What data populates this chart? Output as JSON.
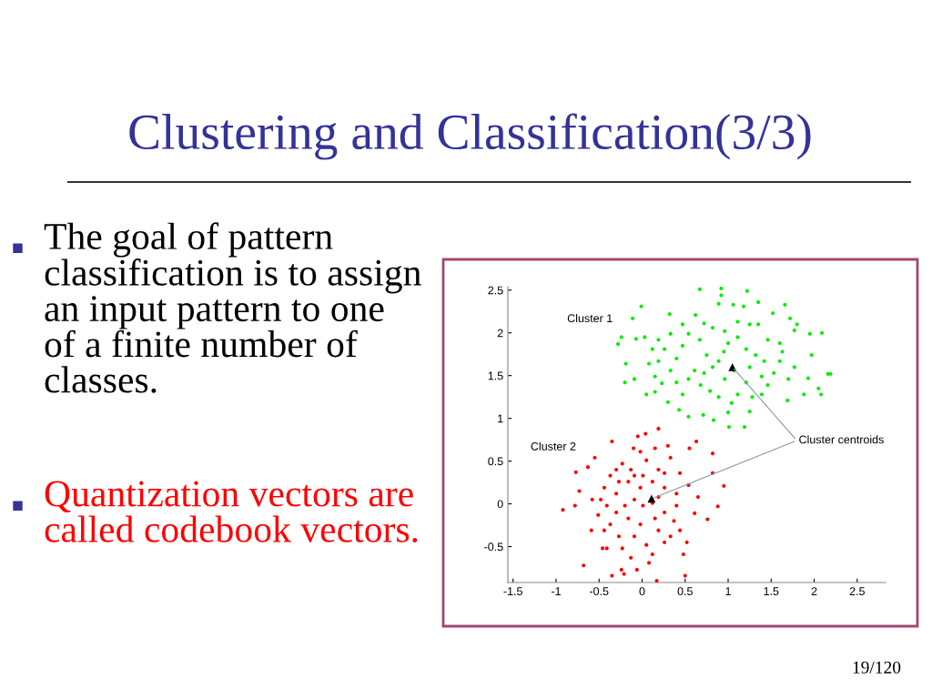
{
  "chart_data": {
    "type": "scatter",
    "title": "Clustering and Classification(3/3)",
    "annotations": [
      "Cluster 1",
      "Cluster 2",
      {
        "text": "Cluster centroids",
        "x": 1.05,
        "y": 1.6
      },
      "The goal of pattern classification is to assign an input pattern to one of a finite number of classes.",
      "Quantization vectors are called codebook vectors.",
      "19/120"
    ],
    "xlim": [
      -1.56,
      2.83
    ],
    "ylim": [
      -0.92,
      2.54
    ],
    "xticks": [
      -1.5,
      -1,
      -0.5,
      0,
      0.5,
      1,
      1.5,
      2,
      2.5
    ],
    "yticks": [
      -0.5,
      0,
      0.5,
      1,
      1.5,
      2,
      2.5
    ],
    "grid": false,
    "series": [
      {
        "color": "#00ee00",
        "marker": "circle",
        "x": [
          0.67,
          0.92,
          1.22,
          0.92,
          0.89,
          1.35,
          1.06,
          -0.01,
          1.66,
          1.18,
          -0.11,
          0.32,
          0.62,
          1.52,
          1.72,
          -0.24,
          -0.28,
          -0.07,
          0.03,
          -0.19,
          -0.2,
          -0.09,
          0.05,
          0.15,
          0.23,
          0.3,
          0.43,
          0.54,
          0.71,
          0.83,
          1.01,
          1.19,
          1.0,
          1.25,
          1.39,
          1.69,
          1.88,
          2.08,
          2.05,
          1.93,
          2.16,
          2.19,
          1.97,
          2.09,
          1.95,
          1.8,
          1.77,
          1.63,
          1.6,
          1.42,
          1.32,
          1.21,
          1.11,
          1.0,
          0.95,
          0.89,
          0.82,
          0.75,
          0.67,
          0.54,
          0.47,
          0.4,
          0.33,
          0.26,
          0.19,
          0.12,
          0.4,
          0.54,
          0.68,
          0.79,
          0.89,
          1.11,
          1.21,
          1.28,
          1.46,
          1.53,
          1.7,
          1.77,
          1.6,
          1.46,
          1.35,
          1.25,
          1.11,
          0.96,
          0.82,
          0.72,
          0.47,
          0.33,
          0.19,
          0.08,
          0.15,
          0.61,
          1.07,
          1.25,
          1.39,
          0.96,
          0.72,
          0.47,
          1.04
        ],
        "values": [
          2.51,
          2.52,
          2.49,
          2.44,
          2.34,
          2.36,
          2.33,
          2.31,
          2.33,
          2.31,
          2.17,
          2.22,
          2.21,
          2.23,
          2.17,
          1.95,
          1.87,
          1.93,
          1.95,
          1.64,
          1.42,
          1.46,
          1.28,
          1.31,
          1.41,
          1.19,
          1.1,
          1.02,
          1.04,
          0.98,
          0.9,
          0.9,
          1.07,
          1.08,
          1.28,
          1.21,
          1.28,
          1.28,
          1.35,
          1.47,
          1.52,
          1.52,
          1.74,
          2.0,
          1.99,
          2.1,
          2.03,
          1.78,
          1.67,
          1.67,
          1.74,
          1.81,
          1.95,
          1.88,
          1.78,
          1.67,
          1.6,
          1.74,
          1.92,
          1.99,
          1.85,
          1.7,
          1.56,
          1.81,
          1.67,
          1.81,
          1.42,
          1.46,
          1.39,
          1.32,
          1.25,
          1.28,
          1.42,
          1.25,
          1.39,
          1.53,
          1.46,
          1.6,
          1.88,
          1.92,
          2.1,
          2.1,
          2.13,
          2.02,
          2.06,
          2.11,
          2.1,
          1.99,
          1.92,
          1.64,
          1.49,
          1.56,
          1.56,
          1.6,
          1.49,
          1.46,
          1.53,
          1.28,
          1.18
        ]
      },
      {
        "color": "#ff0000",
        "marker": "circle",
        "x": [
          0.19,
          0.04,
          -0.05,
          -0.35,
          0.63,
          -0.1,
          0.55,
          0.82,
          -0.55,
          -0.63,
          -0.77,
          0.82,
          0.95,
          -0.73,
          -0.92,
          -0.78,
          0.88,
          0.76,
          0.61,
          -0.59,
          -0.46,
          -0.41,
          -0.68,
          -0.35,
          -0.24,
          -0.21,
          -0.06,
          0.08,
          0.17,
          0.5,
          0.48,
          0.52,
          0.33,
          0.19,
          0.05,
          -0.13,
          -0.27,
          -0.37,
          -0.51,
          -0.58,
          -0.44,
          -0.37,
          -0.23,
          -0.09,
          0.05,
          0.19,
          0.33,
          0.44,
          0.54,
          0.65,
          0.4,
          0.26,
          0.12,
          -0.02,
          -0.16,
          -0.3,
          -0.2,
          -0.09,
          0.01,
          0.12,
          0.19,
          0.26,
          0.37,
          0.15,
          -0.02,
          -0.16,
          -0.3,
          -0.41,
          -0.48,
          -0.27,
          -0.13,
          0.01,
          0.26,
          0.4,
          0.44,
          0.26,
          0.12,
          -0.09,
          -0.23,
          -0.44,
          -0.3,
          -0.02,
          0.15,
          0.3
        ],
        "values": [
          0.88,
          0.82,
          0.79,
          0.73,
          0.73,
          0.65,
          0.65,
          0.59,
          0.54,
          0.43,
          0.37,
          0.36,
          0.21,
          0.15,
          -0.07,
          -0.02,
          -0.03,
          -0.18,
          -0.11,
          -0.31,
          -0.52,
          -0.52,
          -0.72,
          -0.84,
          -0.77,
          -0.82,
          -0.77,
          -0.69,
          -0.9,
          -0.84,
          -0.59,
          -0.45,
          -0.38,
          -0.31,
          -0.48,
          -0.63,
          -0.38,
          -0.24,
          -0.13,
          0.05,
          0.19,
          0.33,
          0.47,
          0.33,
          0.51,
          0.4,
          0.54,
          0.36,
          0.22,
          0.08,
          0.12,
          0.19,
          0.26,
          0.19,
          0.26,
          0.12,
          -0.02,
          0.05,
          -0.02,
          0.01,
          0.08,
          -0.1,
          -0.2,
          -0.17,
          -0.24,
          -0.17,
          -0.1,
          -0.02,
          0.05,
          0.26,
          0.4,
          0.33,
          0.36,
          -0.02,
          -0.31,
          -0.45,
          -0.59,
          -0.38,
          -0.52,
          -0.31,
          0.4,
          0.61,
          0.65,
          0.68
        ]
      },
      {
        "color": "#000000",
        "marker": "triangle",
        "x": [
          1.05,
          0.11
        ],
        "values": [
          1.6,
          0.06
        ]
      }
    ]
  }
}
